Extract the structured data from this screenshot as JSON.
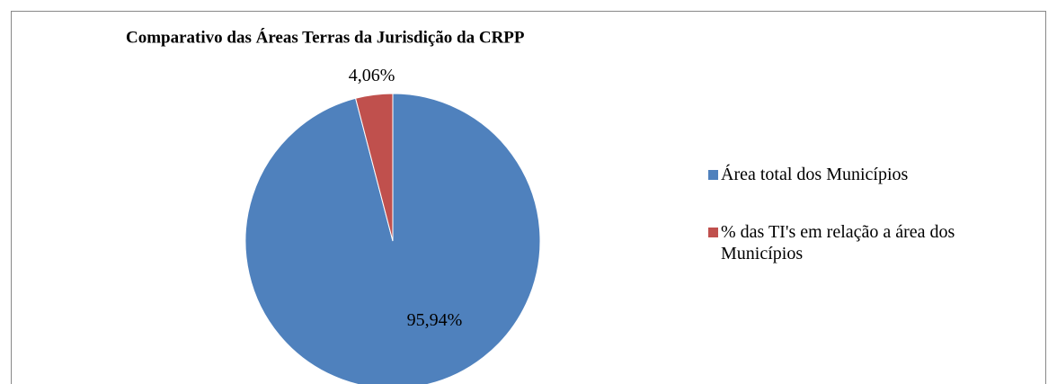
{
  "chart_data": {
    "type": "pie",
    "title": "Comparativo das Áreas Terras da Jurisdição da CRPP",
    "categories": [
      "Área total dos Municípios",
      "% das TI's em relação a área dos Municípios"
    ],
    "values": [
      95.94,
      4.06
    ],
    "value_labels": [
      "95,94%",
      "4,06%"
    ],
    "colors": [
      "#4f81bd",
      "#c0504d"
    ],
    "legend": "right"
  }
}
